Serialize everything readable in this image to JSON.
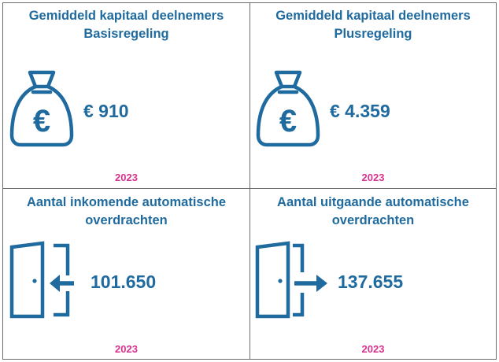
{
  "panels": [
    {
      "title_line1": "Gemiddeld kapitaal deelnemers",
      "title_line2": "Basisregeling",
      "value": "€ 910",
      "year": "2023",
      "icon": "money-bag-euro-icon"
    },
    {
      "title_line1": "Gemiddeld kapitaal deelnemers",
      "title_line2": "Plusregeling",
      "value": "€ 4.359",
      "year": "2023",
      "icon": "money-bag-euro-icon"
    },
    {
      "title_line1": "Aantal inkomende automatische",
      "title_line2": "overdrachten",
      "value": "101.650",
      "year": "2023",
      "icon": "door-arrow-in-icon"
    },
    {
      "title_line1": "Aantal uitgaande automatische",
      "title_line2": "overdrachten",
      "value": "137.655",
      "year": "2023",
      "icon": "door-arrow-out-icon"
    }
  ],
  "colors": {
    "primary": "#1f6a9e",
    "accent": "#d6338f",
    "border": "#6b6b6b"
  }
}
